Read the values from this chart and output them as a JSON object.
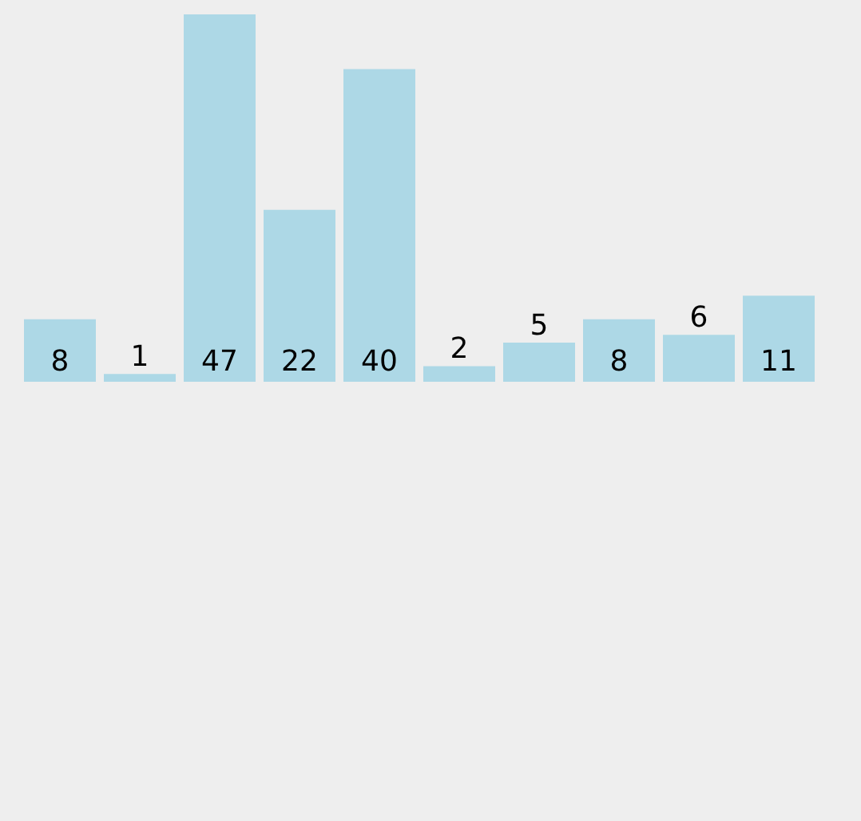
{
  "chart_data": {
    "type": "bar",
    "categories": [
      null,
      null,
      null,
      null,
      null,
      null,
      null,
      null,
      null,
      null
    ],
    "values": [
      8,
      1,
      47,
      22,
      40,
      2,
      5,
      8,
      6,
      11
    ],
    "color": "#add8e6",
    "data_labels": true,
    "legend": false,
    "tick_labels": false
  }
}
